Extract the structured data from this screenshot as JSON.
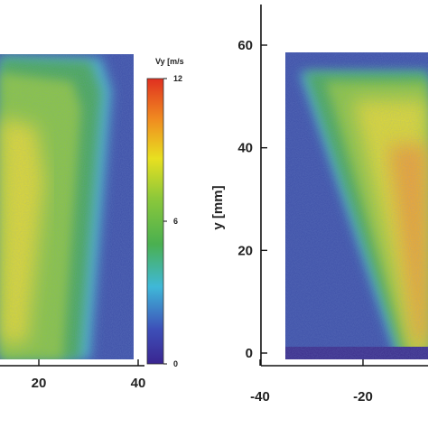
{
  "chart_data": [
    {
      "type": "heatmap",
      "panel": "left",
      "quantity": "Vy",
      "xtick_labels": [
        "20",
        "40"
      ],
      "xticks": [
        20,
        40
      ],
      "colorbar": {
        "label": "Vy [m/s",
        "tick_labels": [
          "12",
          "6",
          "0"
        ],
        "ticks": [
          12,
          6,
          0
        ],
        "range": [
          0,
          12
        ],
        "colors": [
          "#3a2590",
          "#3d4fb8",
          "#3fb8d8",
          "#4ab050",
          "#8cc83a",
          "#e8e020",
          "#f08a20",
          "#e03020"
        ]
      }
    },
    {
      "type": "heatmap",
      "panel": "right",
      "quantity": "Vy",
      "ylabel": "y [mm]",
      "xtick_labels": [
        "-40",
        "-20"
      ],
      "xticks": [
        -40,
        -20
      ],
      "ytick_labels": [
        "60",
        "40",
        "20",
        "0"
      ],
      "yticks": [
        60,
        40,
        20,
        0
      ],
      "ylim": [
        -2,
        68
      ]
    }
  ]
}
